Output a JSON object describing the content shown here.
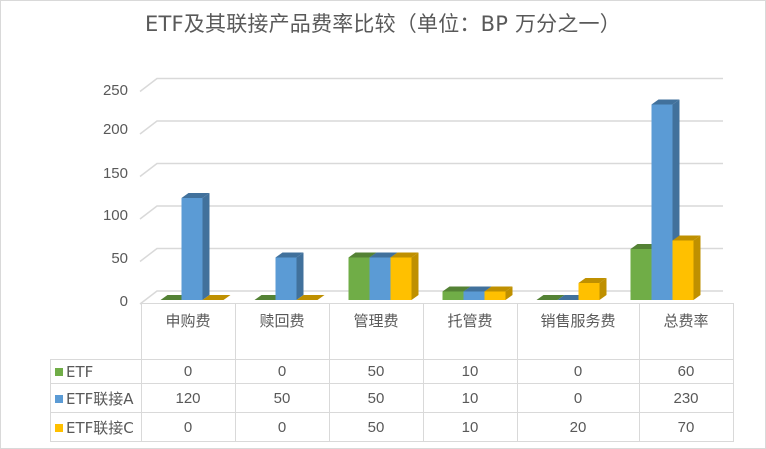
{
  "chart_data": {
    "type": "bar",
    "subtype": "3d-clustered-column-with-data-table",
    "title": "ETF及其联接产品费率比较（单位：BP 万分之一）",
    "xlabel": "",
    "ylabel": "",
    "ylim": [
      0,
      250
    ],
    "yticks": [
      0,
      50,
      100,
      150,
      200,
      250
    ],
    "grid": true,
    "legend_position": "data-table",
    "categories": [
      "申购费",
      "赎回费",
      "管理费",
      "托管费",
      "销售服务费",
      "总费率"
    ],
    "series": [
      {
        "name": "ETF",
        "color": "#70AD47",
        "side_color": "#548235",
        "values": [
          0,
          0,
          50,
          10,
          0,
          60
        ]
      },
      {
        "name": "ETF联接A",
        "color": "#5B9BD5",
        "side_color": "#41719C",
        "values": [
          120,
          50,
          50,
          10,
          0,
          230
        ]
      },
      {
        "name": "ETF联接C",
        "color": "#FFC000",
        "side_color": "#BF9000",
        "values": [
          0,
          0,
          50,
          10,
          20,
          70
        ]
      }
    ]
  },
  "ytick_labels": [
    "250",
    "200",
    "150",
    "100",
    "50",
    "0"
  ],
  "table": {
    "header": [
      "申购费",
      "赎回费",
      "管理费",
      "托管费",
      "销售服务费",
      "总费率"
    ],
    "rows": [
      {
        "name": "ETF",
        "color": "#70AD47",
        "cells": [
          "0",
          "0",
          "50",
          "10",
          "0",
          "60"
        ]
      },
      {
        "name": "ETF联接A",
        "color": "#5B9BD5",
        "cells": [
          "120",
          "50",
          "50",
          "10",
          "0",
          "230"
        ]
      },
      {
        "name": "ETF联接C",
        "color": "#FFC000",
        "cells": [
          "0",
          "0",
          "50",
          "10",
          "20",
          "70"
        ]
      }
    ]
  }
}
